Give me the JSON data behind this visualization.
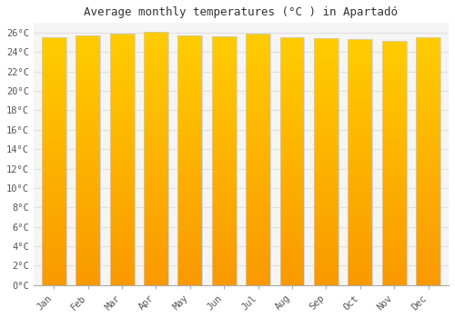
{
  "title": "Average monthly temperatures (°C ) in Apartadó",
  "months": [
    "Jan",
    "Feb",
    "Mar",
    "Apr",
    "May",
    "Jun",
    "Jul",
    "Aug",
    "Sep",
    "Oct",
    "Nov",
    "Dec"
  ],
  "values": [
    25.5,
    25.7,
    25.9,
    26.1,
    25.7,
    25.6,
    25.9,
    25.5,
    25.4,
    25.3,
    25.2,
    25.5
  ],
  "bar_color": "#FFA500",
  "bar_edge_color": "#cccccc",
  "background_color": "#ffffff",
  "plot_bg_color": "#f5f5f5",
  "grid_color": "#e0e0e0",
  "ylim": [
    0,
    27
  ],
  "ytick_max": 26,
  "ytick_step": 2,
  "title_fontsize": 9,
  "tick_fontsize": 7.5
}
